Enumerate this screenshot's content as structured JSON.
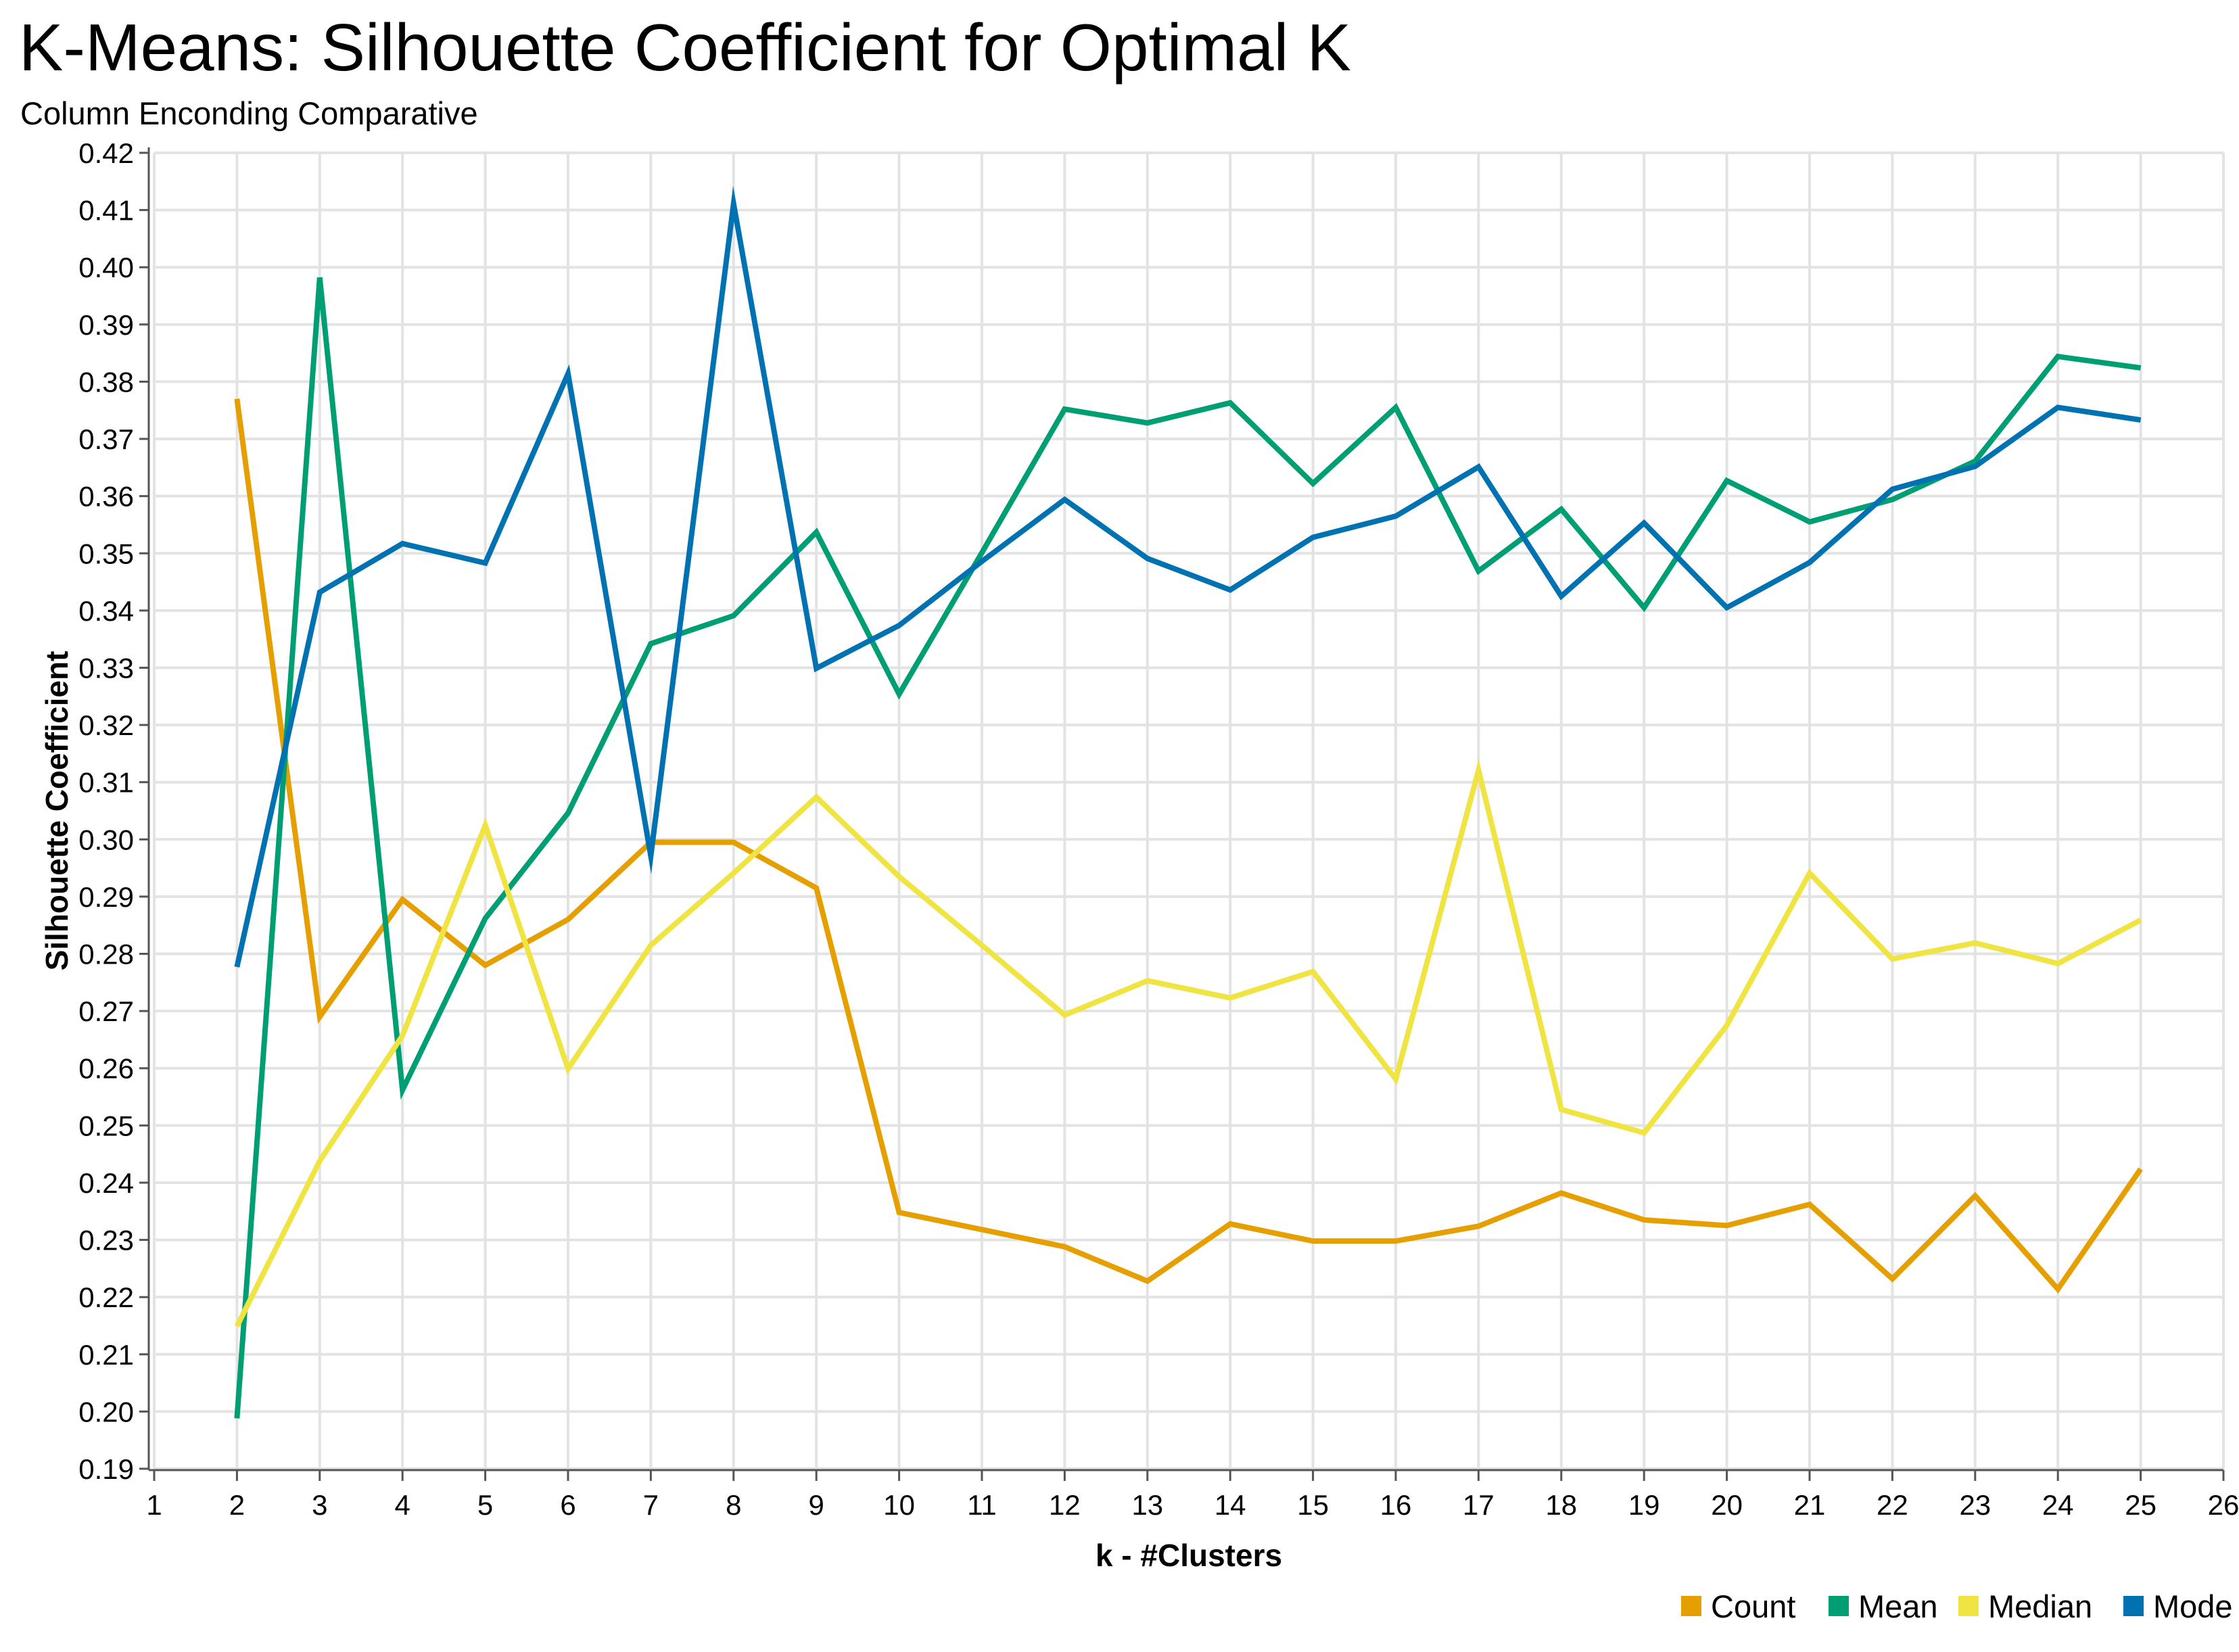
{
  "chart_data": {
    "type": "line",
    "title": "K-Means: Silhouette Coefficient for Optimal K",
    "subtitle": "Column Enconding Comparative",
    "xlabel": "k - #Clusters",
    "ylabel": "Silhouette Coefficient",
    "xlim": [
      1,
      26
    ],
    "ylim": [
      0.19,
      0.42
    ],
    "xticks": [
      1,
      2,
      3,
      4,
      5,
      6,
      7,
      8,
      9,
      10,
      11,
      12,
      13,
      14,
      15,
      16,
      17,
      18,
      19,
      20,
      21,
      22,
      23,
      24,
      25,
      26
    ],
    "yticks": [
      "0.19",
      "0.20",
      "0.21",
      "0.22",
      "0.23",
      "0.24",
      "0.25",
      "0.26",
      "0.27",
      "0.28",
      "0.29",
      "0.30",
      "0.31",
      "0.32",
      "0.33",
      "0.34",
      "0.35",
      "0.36",
      "0.37",
      "0.38",
      "0.39",
      "0.40",
      "0.41",
      "0.42"
    ],
    "grid": true,
    "legend_position": "bottom-right",
    "x": [
      2,
      3,
      4,
      5,
      6,
      7,
      8,
      9,
      10,
      11,
      12,
      13,
      14,
      15,
      16,
      17,
      18,
      19,
      20,
      21,
      22,
      23,
      24,
      25
    ],
    "series": [
      {
        "name": "Count",
        "color": "#E69F00",
        "values": [
          0.377,
          0.269,
          0.2895,
          0.278,
          0.286,
          0.2995,
          0.2995,
          0.2915,
          0.2348,
          0.2318,
          0.2288,
          0.2228,
          0.2328,
          0.2298,
          0.2298,
          0.2324,
          0.2382,
          0.2335,
          0.2325,
          0.2362,
          0.2232,
          0.2377,
          0.2214,
          0.2424
        ]
      },
      {
        "name": "Mean",
        "color": "#009E73",
        "values": [
          0.1988,
          0.3982,
          0.2562,
          0.2862,
          0.3046,
          0.3342,
          0.3391,
          0.3537,
          0.3254,
          0.3501,
          0.3752,
          0.3728,
          0.3763,
          0.3622,
          0.3755,
          0.3469,
          0.3577,
          0.3405,
          0.3627,
          0.3555,
          0.3594,
          0.3661,
          0.3844,
          0.3824
        ]
      },
      {
        "name": "Median",
        "color": "#F0E442",
        "values": [
          0.2149,
          0.2438,
          0.2657,
          0.3025,
          0.2599,
          0.2815,
          0.2941,
          0.3074,
          0.2935,
          0.2815,
          0.2693,
          0.2753,
          0.2723,
          0.2769,
          0.2581,
          0.3121,
          0.2528,
          0.2487,
          0.2675,
          0.2941,
          0.2791,
          0.2819,
          0.2783,
          0.2859
        ]
      },
      {
        "name": "Mode",
        "color": "#0072B2",
        "values": [
          0.2777,
          0.3432,
          0.3517,
          0.3483,
          0.3814,
          0.2971,
          0.4111,
          0.3299,
          0.3374,
          0.3486,
          0.3594,
          0.3491,
          0.3436,
          0.3528,
          0.3565,
          0.3651,
          0.3425,
          0.3553,
          0.3405,
          0.3484,
          0.3612,
          0.3652,
          0.3755,
          0.3733
        ]
      }
    ]
  }
}
